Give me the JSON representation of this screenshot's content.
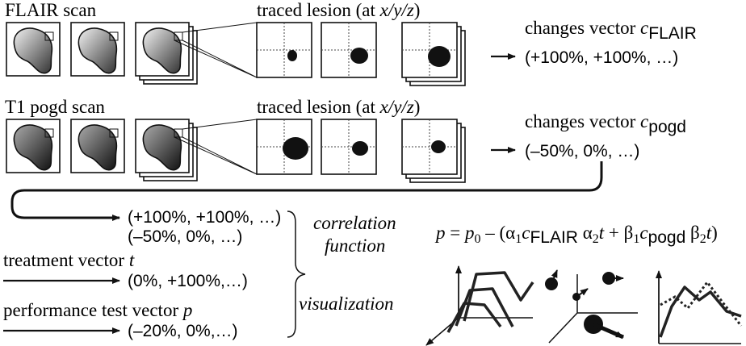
{
  "row1": {
    "scan_label": "FLAIR scan",
    "traced": {
      "prefix": "traced lesion (at ",
      "coords": "x/y/z",
      "suffix": ")"
    },
    "vector": {
      "label": "changes vector ",
      "symbol": "c",
      "subscript": "FLAIR"
    },
    "values": "(+100%, +100%, …)"
  },
  "row2": {
    "scan_label": "T1 pogd scan",
    "traced": {
      "prefix": "traced lesion (at ",
      "coords": "x/y/z",
      "suffix": ")"
    },
    "vector": {
      "label": "changes vector ",
      "symbol": "c",
      "subscript": "pogd"
    },
    "values": "(–50%, 0%, …)"
  },
  "inputs": {
    "changes_flair": "(+100%, +100%, …)",
    "changes_pogd": "(–50%, 0%, …)",
    "treatment": {
      "label": "treatment vector ",
      "symbol": "t",
      "values": "(0%, +100%,…)"
    },
    "performance": {
      "label": "performance test vector ",
      "symbol": "p",
      "values": "(–20%, 0%,…)"
    }
  },
  "analysis": {
    "correlation": "correlation",
    "function": "function",
    "visualization": "visualization",
    "formula": [
      "p",
      " = ",
      "p",
      "0",
      " – (",
      "α",
      "1",
      "c",
      "FLAIR",
      " α",
      "2",
      "t",
      " + β",
      "1",
      "c",
      "pogd",
      " β",
      "2",
      "t",
      ")"
    ]
  }
}
